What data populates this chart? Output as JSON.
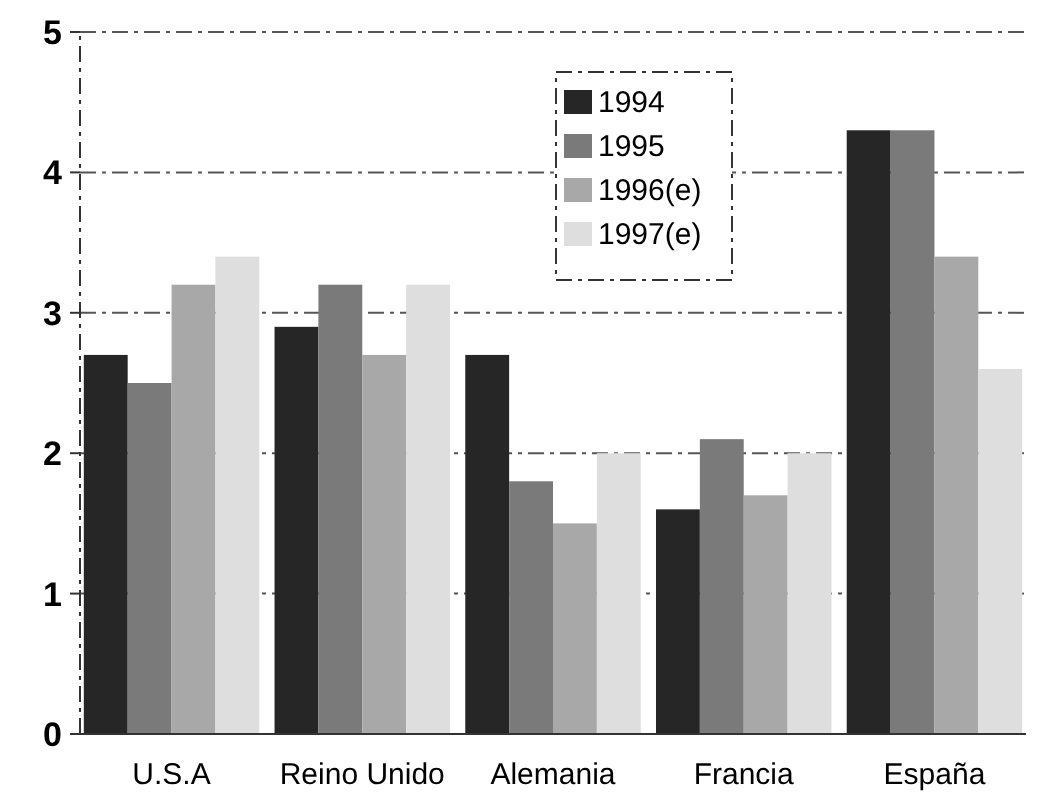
{
  "chart_data": {
    "type": "bar",
    "categories": [
      "U.S.A",
      "Reino Unido",
      "Alemania",
      "Francia",
      "España"
    ],
    "series": [
      {
        "name": "1994",
        "color": "#262626",
        "values": [
          2.7,
          2.9,
          2.7,
          1.6,
          4.3
        ]
      },
      {
        "name": "1995",
        "color": "#7a7a7a",
        "values": [
          2.5,
          3.2,
          1.8,
          2.1,
          4.3
        ]
      },
      {
        "name": "1996(e)",
        "color": "#a8a8a8",
        "values": [
          3.2,
          2.7,
          1.5,
          1.7,
          3.4
        ]
      },
      {
        "name": "1997(e)",
        "color": "#dedede",
        "values": [
          3.4,
          3.2,
          2.0,
          2.0,
          2.6
        ]
      }
    ],
    "ylim": [
      0,
      5
    ],
    "yticks": [
      0,
      1,
      2,
      3,
      4,
      5
    ],
    "grid": "y",
    "line_style": "dashed",
    "legend": "top"
  }
}
